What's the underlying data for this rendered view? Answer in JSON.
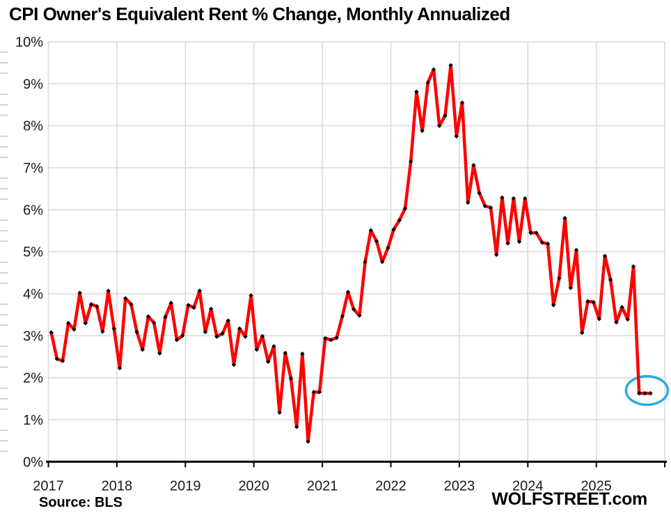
{
  "header": {
    "title": "CPI Owner's Equivalent Rent % Change, Monthly Annualized"
  },
  "footer": {
    "source": "Source: BLS",
    "brand": "WOLFSTREET.com"
  },
  "chart_data": {
    "type": "line",
    "title": "CPI Owner's Equivalent Rent % Change, Monthly Annualized",
    "frequency": "monthly",
    "start_month": "2017-01",
    "end_month": "2025-10",
    "x_tick_labels": [
      "2017",
      "2018",
      "2019",
      "2020",
      "2021",
      "2022",
      "2023",
      "2024",
      "2025"
    ],
    "y_tick_labels": [
      "0%",
      "1%",
      "2%",
      "3%",
      "4%",
      "5%",
      "6%",
      "7%",
      "8%",
      "9%",
      "10%"
    ],
    "ylim": [
      0,
      10
    ],
    "y_major_step": 1,
    "y_minor_step": 0.25,
    "grid": "both",
    "grid_color": "#d9d9d9",
    "axis_color": "#000000",
    "tick_label_color": "#1a1a1a",
    "series": [
      {
        "name": "CPI Owner's Equivalent Rent, % change month-to-month annualized",
        "color": "#fe0000",
        "marker": "black-diamond",
        "marker_color": "#000000",
        "values": [
          3.08,
          2.45,
          2.4,
          3.3,
          3.15,
          4.02,
          3.3,
          3.75,
          3.7,
          3.1,
          4.07,
          3.17,
          2.23,
          3.89,
          3.75,
          3.09,
          2.67,
          3.46,
          3.31,
          2.58,
          3.45,
          3.78,
          2.9,
          3.0,
          3.73,
          3.67,
          4.07,
          3.09,
          3.64,
          2.98,
          3.05,
          3.36,
          2.31,
          3.17,
          2.98,
          3.96,
          2.67,
          2.99,
          2.38,
          2.75,
          1.17,
          2.59,
          1.98,
          0.83,
          2.57,
          0.48,
          1.66,
          1.66,
          2.94,
          2.9,
          2.95,
          3.46,
          4.04,
          3.63,
          3.48,
          4.76,
          5.51,
          5.25,
          4.76,
          5.09,
          5.53,
          5.75,
          6.03,
          7.15,
          8.81,
          7.88,
          9.03,
          9.34,
          8.0,
          8.24,
          9.44,
          7.75,
          8.55,
          6.17,
          7.06,
          6.4,
          6.09,
          6.05,
          4.93,
          6.29,
          5.2,
          6.27,
          5.24,
          6.27,
          5.45,
          5.45,
          5.22,
          5.19,
          3.73,
          4.37,
          5.8,
          4.14,
          5.04,
          3.07,
          3.82,
          3.8,
          3.4,
          4.9,
          4.33,
          3.32,
          3.68,
          3.39,
          4.65,
          1.63,
          1.63,
          1.63
        ]
      }
    ],
    "annotation": {
      "shape": "ellipse",
      "target": "last-3-points",
      "color": "#29abe2",
      "note": "blue ellipse highlighting the last three data points"
    }
  }
}
